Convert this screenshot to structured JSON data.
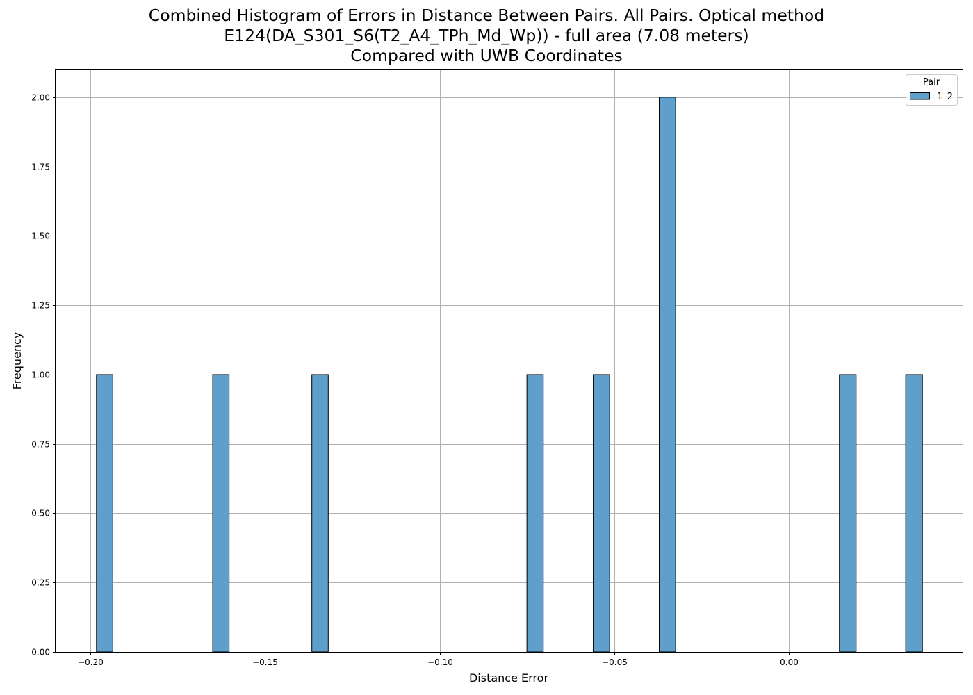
{
  "chart_data": {
    "type": "bar",
    "title": "Combined Histogram of Errors in Distance Between Pairs. All Pairs. Optical method\nE124(DA_S301_S6(T2_A4_TPh_Md_Wp)) - full area (7.08 meters)\nCompared with UWB Coordinates",
    "xlabel": "Distance Error",
    "ylabel": "Frequency",
    "xlim": [
      -0.21,
      0.0498
    ],
    "ylim": [
      0,
      2.1
    ],
    "x_ticks": [
      -0.2,
      -0.15,
      -0.1,
      -0.05,
      0.0
    ],
    "x_tick_labels": [
      "−0.20",
      "−0.15",
      "−0.10",
      "−0.05",
      "0.00"
    ],
    "y_ticks": [
      0,
      0.25,
      0.5,
      0.75,
      1.0,
      1.25,
      1.5,
      1.75,
      2.0
    ],
    "y_tick_labels": [
      "0.00",
      "0.25",
      "0.50",
      "0.75",
      "1.00",
      "1.25",
      "1.50",
      "1.75",
      "2.00"
    ],
    "grid": true,
    "bar_color": "#5f9fcc",
    "edge_color": "#000000",
    "series": [
      {
        "name": "1_2",
        "bins": [
          {
            "x0": -0.1983,
            "x1": -0.1936,
            "count": 1
          },
          {
            "x0": -0.165,
            "x1": -0.1603,
            "count": 1
          },
          {
            "x0": -0.1366,
            "x1": -0.1319,
            "count": 1
          },
          {
            "x0": -0.075,
            "x1": -0.0703,
            "count": 1
          },
          {
            "x0": -0.056,
            "x1": -0.0513,
            "count": 1
          },
          {
            "x0": -0.0371,
            "x1": -0.0324,
            "count": 2
          },
          {
            "x0": 0.0145,
            "x1": 0.0193,
            "count": 1
          },
          {
            "x0": 0.0335,
            "x1": 0.0383,
            "count": 1
          }
        ]
      }
    ],
    "legend": {
      "title": "Pair",
      "position": "top-right"
    }
  }
}
